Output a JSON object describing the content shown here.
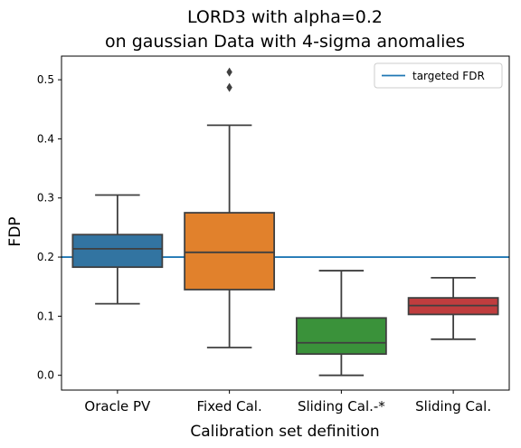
{
  "chart_data": {
    "type": "box",
    "title_line1": "LORD3 with alpha=0.2",
    "title_line2": "on gaussian Data with 4-sigma anomalies",
    "xlabel": "Calibration set definition",
    "ylabel": "FDP",
    "ylim": [
      -0.025,
      0.54
    ],
    "yticks": [
      "0.0",
      "0.1",
      "0.2",
      "0.3",
      "0.4",
      "0.5"
    ],
    "ytick_values": [
      0.0,
      0.1,
      0.2,
      0.3,
      0.4,
      0.5
    ],
    "categories": [
      "Oracle PV",
      "Fixed Cal.",
      "Sliding Cal.-*",
      "Sliding Cal."
    ],
    "boxes": [
      {
        "category": "Oracle PV",
        "color": "#3274a1",
        "whisker_low": 0.121,
        "q1": 0.183,
        "median": 0.214,
        "q3": 0.238,
        "whisker_high": 0.305,
        "outliers": []
      },
      {
        "category": "Fixed Cal.",
        "color": "#e1812c",
        "whisker_low": 0.047,
        "q1": 0.145,
        "median": 0.208,
        "q3": 0.275,
        "whisker_high": 0.423,
        "outliers": [
          0.487,
          0.513
        ]
      },
      {
        "category": "Sliding Cal.-*",
        "color": "#3a923a",
        "whisker_low": 0.0,
        "q1": 0.036,
        "median": 0.055,
        "q3": 0.097,
        "whisker_high": 0.177,
        "outliers": []
      },
      {
        "category": "Sliding Cal.",
        "color": "#c03d3e",
        "whisker_low": 0.061,
        "q1": 0.103,
        "median": 0.118,
        "q3": 0.131,
        "whisker_high": 0.165,
        "outliers": []
      }
    ],
    "reference_line": {
      "value": 0.2,
      "color": "#1f77b4"
    },
    "legend": {
      "label": "targeted FDR",
      "position": "top-right"
    },
    "grid": false
  }
}
